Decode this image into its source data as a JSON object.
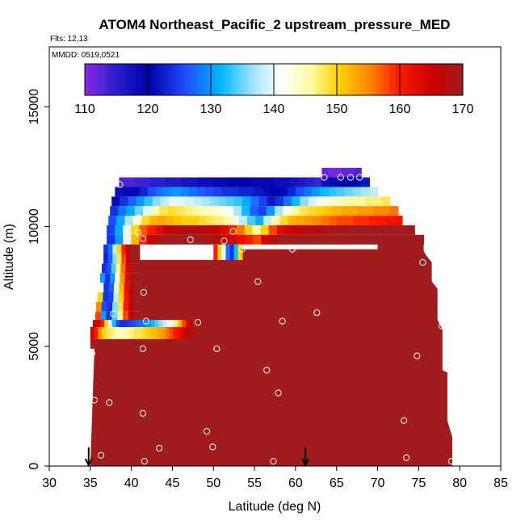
{
  "chart_data": {
    "type": "heatmap",
    "title": "ATOM4 Northeast_Pacific_2 upstream_pressure_MED",
    "subtitle_flights": "Flts: 12,13",
    "subtitle_dates": "MMDD: 0519,0521",
    "xlabel": "Latitude (deg N)",
    "ylabel": "Altitude (m)",
    "xlim": [
      30,
      85
    ],
    "ylim": [
      0,
      17500
    ],
    "x_ticks": [
      "30",
      "35",
      "40",
      "45",
      "50",
      "55",
      "60",
      "65",
      "70",
      "75",
      "80",
      "85"
    ],
    "y_ticks": [
      "0",
      "5000",
      "10000",
      "15000"
    ],
    "colorbar": {
      "min": 110,
      "max": 170,
      "tick_labels": [
        "110",
        "120",
        "130",
        "140",
        "150",
        "160",
        "170"
      ],
      "placement": "top, inside plot"
    },
    "colors": {
      "saturated_high": "#a11c1c",
      "marker": "#ffffff",
      "arrow": "#000000"
    },
    "arrows_at_latitude": [
      34.8,
      61.2
    ],
    "sample_points": [
      [
        35.2,
        4700
      ],
      [
        35.5,
        2750
      ],
      [
        36.3,
        450
      ],
      [
        37.3,
        2650
      ],
      [
        37.8,
        6350
      ],
      [
        38.6,
        11750
      ],
      [
        40.9,
        10350
      ],
      [
        40.8,
        9750
      ],
      [
        41.4,
        9500
      ],
      [
        41.5,
        7250
      ],
      [
        41.8,
        6050
      ],
      [
        41.4,
        4900
      ],
      [
        41.4,
        2200
      ],
      [
        41.6,
        200
      ],
      [
        43.4,
        750
      ],
      [
        47.2,
        9450
      ],
      [
        48.1,
        6000
      ],
      [
        49.2,
        1450
      ],
      [
        49.9,
        800
      ],
      [
        50.4,
        4900
      ],
      [
        51.3,
        9400
      ],
      [
        52.4,
        9800
      ],
      [
        53.5,
        9050
      ],
      [
        55.4,
        7700
      ],
      [
        56.5,
        4000
      ],
      [
        57.3,
        200
      ],
      [
        57.9,
        3050
      ],
      [
        58.4,
        6050
      ],
      [
        59.6,
        9050
      ],
      [
        62.6,
        6400
      ],
      [
        63.5,
        12050
      ],
      [
        65.5,
        12050
      ],
      [
        66.7,
        12050
      ],
      [
        67.8,
        12050
      ],
      [
        73.2,
        1900
      ],
      [
        73.5,
        350
      ],
      [
        74.8,
        4600
      ],
      [
        75.5,
        8500
      ],
      [
        77.8,
        5850
      ],
      [
        79.0,
        200
      ]
    ],
    "value_field": [
      {
        "lat": [
          38.5,
          48.5
        ],
        "alt": [
          11700,
          12050
        ],
        "values": [
          112,
          113,
          114,
          115,
          116,
          117,
          118,
          119,
          120,
          121
        ],
        "note": "top band"
      },
      {
        "lat": [
          48.5,
          57
        ],
        "alt": [
          11700,
          12050
        ],
        "values": [
          119,
          120,
          120,
          119,
          119,
          120,
          121,
          122,
          123
        ]
      },
      {
        "lat": [
          57,
          63.5
        ],
        "alt": [
          11700,
          12050
        ],
        "values": [
          117,
          116,
          118,
          118,
          119,
          120
        ]
      }
    ]
  }
}
